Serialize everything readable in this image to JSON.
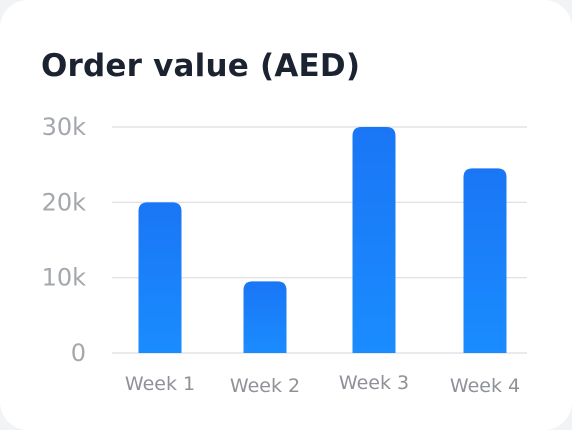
{
  "chart_data": {
    "type": "bar",
    "title": "Order value (AED)",
    "xlabel": "",
    "ylabel": "",
    "categories": [
      "Week 1",
      "Week 2",
      "Week 3",
      "Week 4"
    ],
    "values": [
      20000,
      9500,
      30000,
      24500
    ],
    "ylim": [
      0,
      30000
    ],
    "yticks": [
      0,
      10000,
      20000,
      30000
    ],
    "ytick_labels": [
      "0",
      "10k",
      "20k",
      "30k"
    ],
    "grid": true,
    "legend": "none",
    "bar_color_top": "#1a76f5",
    "bar_color_bottom": "#1a8cff"
  }
}
